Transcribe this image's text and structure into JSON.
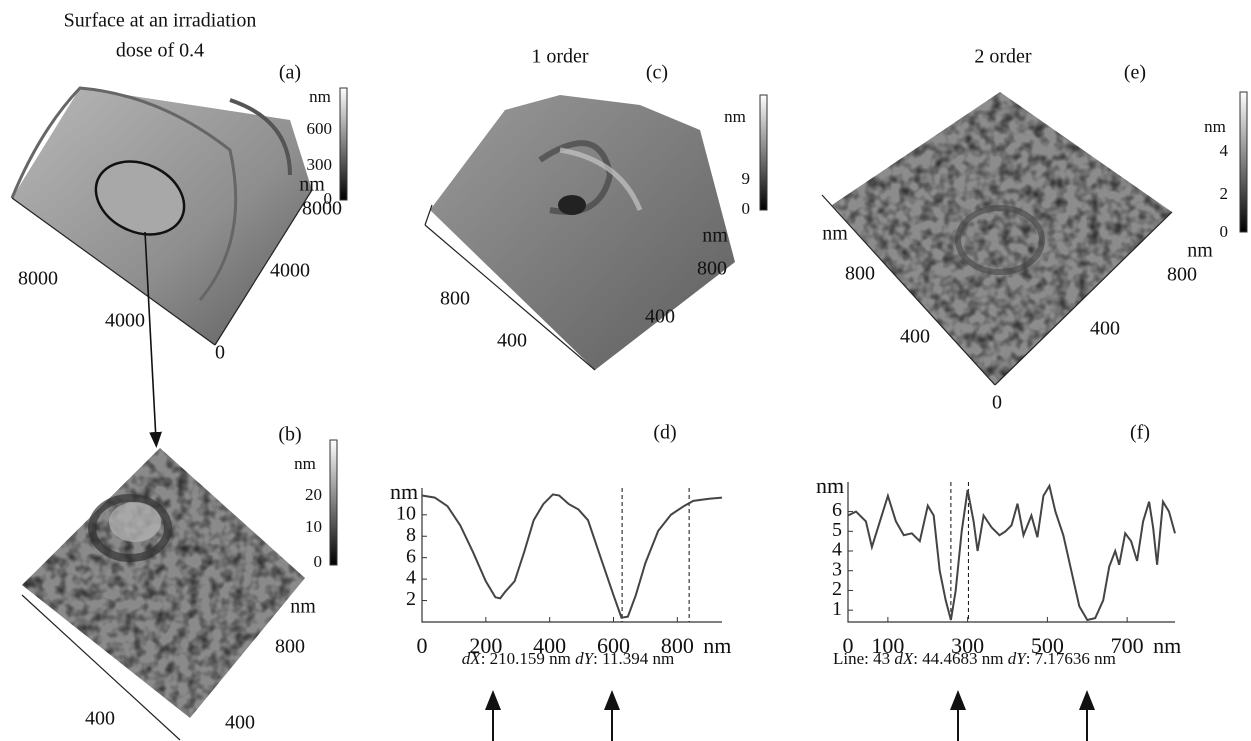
{
  "panels": {
    "a": {
      "title": [
        "Surface at an irradiation",
        "dose of 0.4"
      ],
      "label": "(a)",
      "colorbar": {
        "unit": "nm",
        "ticks": [
          600,
          300,
          0
        ]
      },
      "axis_labels": [
        "nm",
        "8000",
        "4000",
        "8000",
        "4000",
        "0"
      ]
    },
    "b": {
      "label": "(b)",
      "colorbar": {
        "unit": "nm",
        "ticks": [
          20,
          10,
          0
        ]
      },
      "axis_labels": [
        "nm",
        "800",
        "400",
        "400"
      ]
    },
    "c": {
      "title": "1 order",
      "label": "(c)",
      "colorbar": {
        "unit": "nm",
        "ticks": [
          9,
          0
        ]
      },
      "axis_labels": [
        "nm",
        "800",
        "400",
        "800",
        "400"
      ]
    },
    "e": {
      "title": "2 order",
      "label": "(e)",
      "colorbar": {
        "unit": "nm",
        "ticks": [
          4,
          2,
          0
        ]
      },
      "axis_labels": [
        "nm",
        "800",
        "400",
        "nm",
        "800",
        "400",
        "0"
      ]
    }
  },
  "chart_data": [
    {
      "type": "line",
      "label": "(d)",
      "xlabel": "nm",
      "ylabel": "nm",
      "color": "#444",
      "x": [
        0,
        40,
        80,
        120,
        160,
        200,
        230,
        245,
        260,
        290,
        320,
        350,
        380,
        410,
        430,
        460,
        490,
        520,
        560,
        600,
        625,
        645,
        670,
        700,
        740,
        780,
        820,
        850,
        900,
        940
      ],
      "values": [
        11.8,
        11.6,
        10.8,
        9,
        6.5,
        3.8,
        2.3,
        2.2,
        2.8,
        3.8,
        6.5,
        9.5,
        11,
        11.9,
        11.8,
        11,
        10.5,
        9.5,
        6,
        2.5,
        0.4,
        0.5,
        2.5,
        5.5,
        8.5,
        10,
        10.8,
        11.3,
        11.5,
        11.6
      ],
      "cursors": [
        627,
        837
      ],
      "xlim": [
        0,
        940
      ],
      "ylim": [
        0,
        12.5
      ],
      "xticks": [
        0,
        200,
        400,
        600,
        800
      ],
      "yticks": [
        2,
        4,
        6,
        8,
        10
      ],
      "measurement": [
        "dX",
        ": 210.159 nm ",
        "dY",
        ": 11.394 nm"
      ]
    },
    {
      "type": "line",
      "label": "(f)",
      "xlabel": "nm",
      "ylabel": "nm",
      "color": "#444",
      "x": [
        0,
        20,
        45,
        60,
        80,
        100,
        120,
        140,
        160,
        180,
        200,
        215,
        230,
        245,
        258,
        270,
        285,
        300,
        315,
        325,
        340,
        360,
        380,
        395,
        410,
        425,
        440,
        460,
        475,
        490,
        505,
        520,
        540,
        560,
        580,
        600,
        620,
        640,
        655,
        670,
        680,
        695,
        710,
        725,
        740,
        755,
        765,
        775,
        790,
        805,
        820
      ],
      "values": [
        5.8,
        6,
        5.5,
        4.2,
        5.5,
        6.8,
        5.5,
        4.8,
        4.9,
        4.5,
        6.3,
        5.8,
        3,
        1.5,
        0.5,
        2,
        5,
        7.1,
        5.5,
        4,
        5.8,
        5.2,
        4.8,
        5,
        5.3,
        6.4,
        4.8,
        5.8,
        4.7,
        6.8,
        7.3,
        6,
        4.8,
        3,
        1.2,
        0.5,
        0.6,
        1.5,
        3.2,
        4,
        3.3,
        4.9,
        4.5,
        3.5,
        5.5,
        6.5,
        5.2,
        3.3,
        6.5,
        6,
        4.9
      ],
      "cursors": [
        258,
        302
      ],
      "xlim": [
        0,
        820
      ],
      "ylim": [
        0.4,
        7.5
      ],
      "xticks": [
        0,
        100,
        300,
        500,
        700
      ],
      "yticks": [
        1,
        2,
        3,
        4,
        5,
        6
      ],
      "measurement": [
        "Line: 43  ",
        "dX",
        ": 44.4683 nm ",
        "dY",
        ": 7.17636 nm"
      ]
    }
  ]
}
